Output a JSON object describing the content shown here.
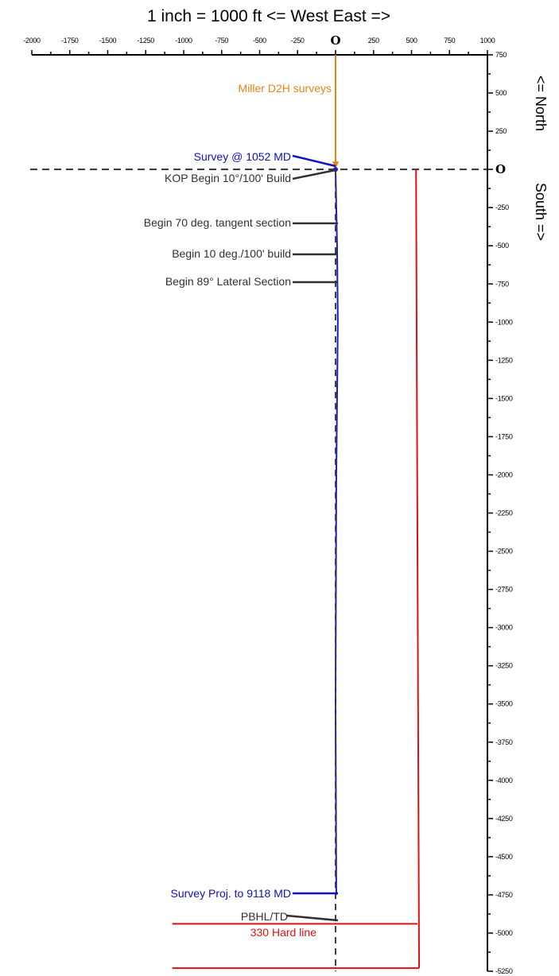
{
  "chart_data": {
    "type": "line",
    "title": "1 inch =  1000 ft    <= West   East =>",
    "ylabel_north": "<= North",
    "ylabel_south": "South =>",
    "xlim": [
      -2000,
      1000
    ],
    "ylim": [
      -5250,
      750
    ],
    "x_ticks": [
      -2000,
      -1750,
      -1500,
      -1250,
      -1000,
      -750,
      -500,
      -250,
      0,
      250,
      500,
      750,
      1000
    ],
    "x_tick_labels": [
      "-2000",
      "-1750",
      "-1500",
      "-1250",
      "-1000",
      "-750",
      "-500",
      "-250",
      "O",
      "250",
      "500",
      "750",
      "1000"
    ],
    "y_ticks": [
      750,
      500,
      250,
      0,
      -250,
      -500,
      -750,
      -1000,
      -1250,
      -1500,
      -1750,
      -2000,
      -2250,
      -2500,
      -2750,
      -3000,
      -3250,
      -3500,
      -3750,
      -4000,
      -4250,
      -4500,
      -4750,
      -5000,
      -5250
    ],
    "y_tick_labels": [
      "750",
      "500",
      "250",
      "O",
      "-250",
      "-500",
      "-750",
      "-1000",
      "-1250",
      "-1500",
      "-1750",
      "-2000",
      "-2250",
      "-2500",
      "-2750",
      "-3000",
      "-3250",
      "-3500",
      "-3750",
      "-4000",
      "-4250",
      "-4500",
      "-4750",
      "-5000",
      "-5250"
    ],
    "series": [
      {
        "name": "Miller D2H surveys",
        "color": "#e8831a",
        "points": [
          [
            0,
            750
          ],
          [
            0,
            0
          ]
        ]
      },
      {
        "name": "",
        "color": "#1a1acc",
        "points": [
          [
            0,
            0
          ],
          [
            10,
            -500
          ],
          [
            15,
            -1000
          ],
          [
            5,
            -2000
          ],
          [
            0,
            -3500
          ],
          [
            5,
            -4750
          ]
        ]
      },
      {
        "name": "",
        "color": "#404040",
        "dashed": true,
        "points": [
          [
            0,
            0
          ],
          [
            0,
            -5250
          ]
        ]
      }
    ],
    "reference_lines": {
      "surface_dashed_y": 0,
      "hard_line_color": "#e01010",
      "hard_line_x": [
        530,
        550
      ],
      "hard_line_y": [
        0,
        -4940,
        -5230
      ],
      "hard_line_left_x": -1075
    },
    "annotations": [
      {
        "text": "Miller D2H surveys",
        "color": "#e8831a",
        "x": 0,
        "y": 500
      },
      {
        "text": "Survey @  1052 MD",
        "color": "#1010c0",
        "x": 0,
        "y": 0
      },
      {
        "text": "KOP Begin  10°/100' Build",
        "color": "#303030",
        "x": 0,
        "y": -50
      },
      {
        "text": "Begin 70 deg. tangent section",
        "color": "#303030",
        "x": 0,
        "y": -370
      },
      {
        "text": "Begin 10 deg./100' build",
        "color": "#303030",
        "x": 0,
        "y": -540
      },
      {
        "text": "Begin  89° Lateral Section",
        "color": "#303030",
        "x": 0,
        "y": -730
      },
      {
        "text": "Survey Proj. to  9118 MD",
        "color": "#1010c0",
        "x": 0,
        "y": -4750
      },
      {
        "text": "PBHL/TD",
        "color": "#303030",
        "x": 0,
        "y": -4940
      },
      {
        "text": "330 Hard line",
        "color": "#e01010",
        "x": 0,
        "y": -4990
      }
    ]
  }
}
